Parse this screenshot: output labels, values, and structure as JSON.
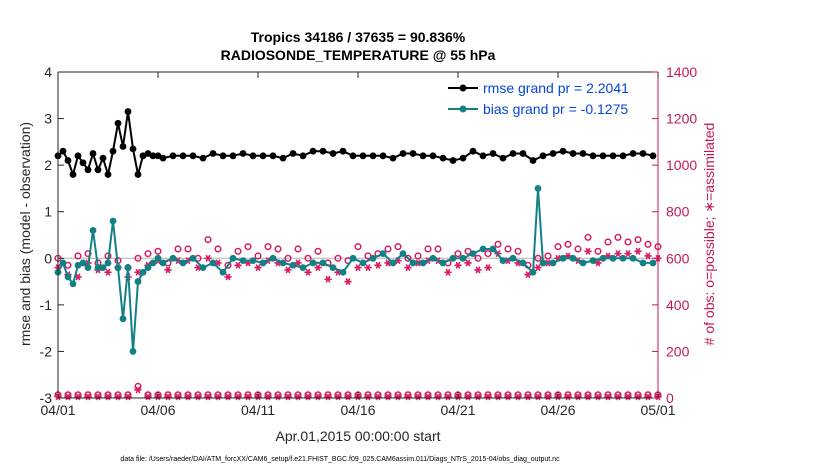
{
  "chart_data": {
    "type": "line",
    "title_line1": "Tropics 34186 / 37635 = 90.836%",
    "title_line2": "RADIOSONDE_TEMPERATURE @ 55 hPa",
    "xlabel": "Apr.01,2015 00:00:00 start",
    "ylabel_left": "rmse and bias (model - observation)",
    "ylabel_right": "# of obs: o=possible; ∗=assimilated",
    "footnote": "data file: /Users/raeder/DAI/ATM_forcXX/CAM6_setup/f.e21.FHIST_BGC.f09_025.CAM6assim.011/Diags_NTrS_2015-04/obs_diag_output.nc",
    "xlim": [
      0,
      30
    ],
    "ylim_left": [
      -3,
      4
    ],
    "ylim_right": [
      0,
      1400
    ],
    "x_ticks": [
      0,
      5,
      10,
      15,
      20,
      25,
      30
    ],
    "x_tick_labels": [
      "04/01",
      "04/06",
      "04/11",
      "04/16",
      "04/21",
      "04/26",
      "05/01"
    ],
    "y_left_ticks": [
      -3,
      -2,
      -1,
      0,
      1,
      2,
      3,
      4
    ],
    "y_right_ticks": [
      0,
      200,
      400,
      600,
      800,
      1000,
      1200,
      1400
    ],
    "legend_position": "top-right",
    "colors": {
      "rmse": "#000000",
      "bias": "#138086",
      "obs": "#d81b60",
      "legend_text": "#0645d8",
      "right_axis": "#c2185b"
    },
    "series": [
      {
        "name": "rmse grand pr = 2.2041",
        "axis": "left",
        "x": [
          0,
          0.25,
          0.5,
          0.75,
          1,
          1.25,
          1.5,
          1.75,
          2,
          2.25,
          2.5,
          2.75,
          3,
          3.25,
          3.5,
          3.75,
          4,
          4.25,
          4.5,
          4.75,
          5,
          5.75,
          6.75,
          7.75,
          8.75,
          9.75,
          10.75,
          11.75,
          12.75,
          13.75,
          14.75,
          15.75,
          16.75,
          17.75,
          18.75,
          19.75,
          20.75,
          21.75,
          22.75,
          23.75,
          24.75,
          25.75,
          26.75,
          27.75,
          28.75,
          29.75,
          5.25,
          6.25,
          7.25,
          8.25,
          9.25,
          10.25,
          11.25,
          12.25,
          13.25,
          14.25,
          15.25,
          16.25,
          17.25,
          18.25,
          19.25,
          20.25,
          21.25,
          22.25,
          23.25,
          24.25,
          25.25,
          26.25,
          27.25,
          28.25,
          29.25
        ],
        "values": [
          2.2,
          2.3,
          2.1,
          1.8,
          2.2,
          2.05,
          1.9,
          2.25,
          1.9,
          2.15,
          1.8,
          2.3,
          2.9,
          2.4,
          3.15,
          2.35,
          1.8,
          2.2,
          2.25,
          2.2,
          2.2,
          2.2,
          2.2,
          2.25,
          2.2,
          2.2,
          2.2,
          2.25,
          2.3,
          2.25,
          2.2,
          2.2,
          2.15,
          2.25,
          2.2,
          2.1,
          2.3,
          2.25,
          2.25,
          2.1,
          2.25,
          2.25,
          2.2,
          2.2,
          2.25,
          2.2,
          2.15,
          2.2,
          2.15,
          2.2,
          2.25,
          2.2,
          2.15,
          2.2,
          2.3,
          2.3,
          2.2,
          2.2,
          2.25,
          2.2,
          2.15,
          2.15,
          2.2,
          2.15,
          2.25,
          2.2,
          2.3,
          2.25,
          2.2,
          2.2,
          2.25
        ]
      },
      {
        "name": "bias grand pr = -0.1275",
        "axis": "left",
        "x": [
          0,
          0.25,
          0.5,
          0.75,
          1,
          1.25,
          1.5,
          1.75,
          2,
          2.25,
          2.5,
          2.75,
          3,
          3.25,
          3.5,
          3.75,
          4,
          4.25,
          4.5,
          4.75,
          5,
          5.25,
          5.75,
          6.25,
          6.75,
          7.25,
          7.75,
          8.25,
          8.75,
          9.25,
          9.75,
          10.25,
          10.75,
          11.25,
          11.75,
          12.25,
          12.75,
          13.25,
          13.75,
          14.25,
          14.75,
          15.25,
          15.75,
          16.25,
          16.75,
          17.25,
          17.75,
          18.25,
          18.75,
          19.25,
          19.75,
          20.25,
          20.75,
          21.25,
          21.75,
          22.25,
          22.75,
          23.25,
          23.75,
          24,
          24.25,
          24.75,
          25.25,
          25.75,
          26.25,
          26.75,
          27.25,
          27.75,
          28.25,
          28.75,
          29.25,
          29.75
        ],
        "values": [
          -0.3,
          -0.1,
          -0.4,
          -0.55,
          -0.15,
          -0.1,
          -0.2,
          0.6,
          -0.2,
          -0.2,
          -0.1,
          0.8,
          -0.2,
          -1.3,
          -0.2,
          -2.0,
          -0.5,
          -0.3,
          -0.2,
          -0.1,
          0.0,
          -0.1,
          0.0,
          -0.1,
          0.0,
          -0.2,
          -0.1,
          -0.3,
          0.0,
          -0.05,
          -0.05,
          -0.1,
          0.0,
          -0.1,
          -0.15,
          -0.2,
          -0.1,
          -0.1,
          -0.2,
          -0.3,
          0.0,
          -0.1,
          0.0,
          0.1,
          -0.1,
          0.1,
          -0.1,
          -0.1,
          0.0,
          -0.1,
          0.0,
          0.0,
          0.1,
          0.2,
          0.2,
          -0.05,
          0.0,
          -0.1,
          -0.3,
          1.5,
          -0.1,
          -0.1,
          0.0,
          0.0,
          -0.1,
          -0.05,
          0.0,
          0.0,
          0.0,
          0.0,
          -0.1,
          -0.1
        ]
      },
      {
        "name": "possible",
        "axis": "right",
        "x": [
          0,
          0.5,
          1,
          1.5,
          2,
          2.5,
          3,
          3.5,
          4,
          4.5,
          5,
          5.5,
          6,
          6.5,
          7,
          7.5,
          8,
          8.5,
          9,
          9.5,
          10,
          10.5,
          11,
          11.5,
          12,
          12.5,
          13,
          13.5,
          14,
          14.5,
          15,
          15.5,
          16,
          16.5,
          17,
          17.5,
          18,
          18.5,
          19,
          19.5,
          20,
          20.5,
          21,
          21.5,
          22,
          22.5,
          23,
          23.5,
          24,
          24.5,
          25,
          25.5,
          26,
          26.5,
          27,
          27.5,
          28,
          28.5,
          29,
          29.5,
          30,
          0,
          0.5,
          1,
          1.5,
          2,
          2.5,
          3,
          3.5,
          4,
          4.5,
          5,
          5.5,
          6,
          6.5,
          7,
          7.5,
          8,
          8.5,
          9,
          9.5,
          10,
          10.5,
          11,
          11.5,
          12,
          12.5,
          13,
          13.5,
          14,
          14.5,
          15,
          15.5,
          16,
          16.5,
          17,
          17.5,
          18,
          18.5,
          19,
          19.5,
          20,
          20.5,
          21,
          21.5,
          22,
          22.5,
          23,
          23.5,
          24,
          24.5,
          25,
          25.5,
          26,
          26.5,
          27,
          27.5,
          28,
          28.5,
          29,
          29.5,
          30
        ],
        "values": [
          600,
          570,
          610,
          620,
          580,
          610,
          590,
          560,
          600,
          620,
          630,
          580,
          640,
          640,
          600,
          680,
          640,
          570,
          630,
          650,
          610,
          650,
          640,
          600,
          640,
          600,
          630,
          580,
          600,
          590,
          650,
          610,
          620,
          640,
          650,
          600,
          610,
          640,
          640,
          580,
          620,
          630,
          600,
          620,
          660,
          640,
          630,
          570,
          600,
          610,
          650,
          660,
          640,
          690,
          630,
          670,
          690,
          670,
          680,
          660,
          650,
          14,
          14,
          14,
          14,
          14,
          14,
          14,
          14,
          50,
          14,
          14,
          14,
          14,
          14,
          14,
          14,
          14,
          14,
          14,
          14,
          14,
          14,
          14,
          14,
          14,
          14,
          14,
          14,
          14,
          14,
          14,
          14,
          14,
          14,
          14,
          14,
          14,
          14,
          14,
          14,
          14,
          14,
          14,
          14,
          14,
          14,
          14,
          14,
          14,
          14,
          14,
          14,
          14,
          14,
          14,
          14,
          14,
          14,
          14,
          14,
          14
        ]
      },
      {
        "name": "assimilated",
        "axis": "right",
        "x": [
          0,
          0.5,
          1,
          1.5,
          2,
          2.5,
          3,
          3.5,
          4,
          4.5,
          5,
          5.5,
          6,
          6.5,
          7,
          7.5,
          8,
          8.5,
          9,
          9.5,
          10,
          10.5,
          11,
          11.5,
          12,
          12.5,
          13,
          13.5,
          14,
          14.5,
          15,
          15.5,
          16,
          16.5,
          17,
          17.5,
          18,
          18.5,
          19,
          19.5,
          20,
          20.5,
          21,
          21.5,
          22,
          22.5,
          23,
          23.5,
          24,
          24.5,
          25,
          25.5,
          26,
          26.5,
          27,
          27.5,
          28,
          28.5,
          29,
          29.5,
          30,
          0,
          0.5,
          1,
          1.5,
          2,
          2.5,
          3,
          3.5,
          4,
          4.5,
          5,
          5.5,
          6,
          6.5,
          7,
          7.5,
          8,
          8.5,
          9,
          9.5,
          10,
          10.5,
          11,
          11.5,
          12,
          12.5,
          13,
          13.5,
          14,
          14.5,
          15,
          15.5,
          16,
          16.5,
          17,
          17.5,
          18,
          18.5,
          19,
          19.5,
          20,
          20.5,
          21,
          21.5,
          22,
          22.5,
          23,
          23.5,
          24,
          24.5,
          25,
          25.5,
          26,
          26.5,
          27,
          27.5,
          28,
          28.5,
          29,
          29.5,
          30
        ],
        "values": [
          560,
          530,
          520,
          580,
          550,
          540,
          560,
          520,
          540,
          570,
          590,
          550,
          590,
          590,
          560,
          600,
          580,
          520,
          570,
          580,
          560,
          590,
          580,
          550,
          580,
          540,
          560,
          510,
          540,
          500,
          560,
          560,
          570,
          580,
          590,
          560,
          580,
          590,
          590,
          540,
          570,
          580,
          550,
          560,
          620,
          590,
          580,
          530,
          560,
          580,
          600,
          610,
          590,
          630,
          580,
          610,
          620,
          620,
          630,
          610,
          600,
          5,
          5,
          5,
          5,
          5,
          5,
          5,
          5,
          35,
          5,
          5,
          5,
          5,
          5,
          5,
          5,
          5,
          5,
          5,
          5,
          5,
          5,
          5,
          5,
          5,
          5,
          5,
          5,
          5,
          5,
          5,
          5,
          5,
          5,
          5,
          5,
          5,
          5,
          5,
          5,
          5,
          5,
          5,
          5,
          5,
          5,
          5,
          5,
          5,
          5,
          5,
          5,
          5,
          5,
          5,
          5,
          5,
          5,
          5,
          5,
          5
        ]
      }
    ]
  }
}
